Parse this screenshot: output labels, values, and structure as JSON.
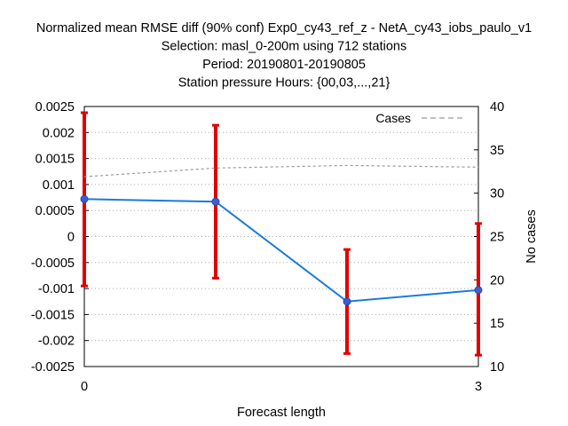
{
  "title_lines": [
    "Normalized mean RMSE diff (90% conf) Exp0_cy43_ref_z - NetA_cy43_iobs_paulo_v1",
    "Selection: masl_0-200m using   712 stations",
    "Period: 20190801-20190805",
    "Station pressure   Hours: {00,03,...,21}"
  ],
  "chart_data": {
    "type": "line",
    "xlabel": "Forecast length",
    "ylabel": "",
    "y2label": "No cases",
    "xlim": [
      0,
      3
    ],
    "ylim": [
      -0.0025,
      0.0025
    ],
    "y2lim": [
      10,
      40
    ],
    "x_ticks": [
      "0",
      "3"
    ],
    "y_ticks": [
      "0.0025",
      "0.002",
      "0.0015",
      "0.001",
      "0.0005",
      "0",
      "-0.0005",
      "-0.001",
      "-0.0015",
      "-0.002",
      "-0.0025"
    ],
    "y2_ticks": [
      "40",
      "35",
      "30",
      "25",
      "20",
      "15",
      "10"
    ],
    "grid": true,
    "legend_position": "top-right",
    "series": [
      {
        "axis": "left",
        "color": "#1a7ae0",
        "x": [
          0,
          1,
          2,
          3
        ],
        "y": [
          0.00072,
          0.00067,
          -0.00125,
          -0.00103
        ],
        "error_low": [
          -0.00095,
          -0.0008,
          -0.00225,
          -0.00228
        ],
        "error_high": [
          0.00238,
          0.00214,
          -0.00025,
          0.00025
        ],
        "error_color": "#e00000"
      },
      {
        "name": "Cases",
        "axis": "right",
        "color": "#999999",
        "dashed": true,
        "x": [
          0,
          1,
          2,
          3
        ],
        "y": [
          31.9,
          32.9,
          33.2,
          33.0
        ]
      }
    ]
  }
}
